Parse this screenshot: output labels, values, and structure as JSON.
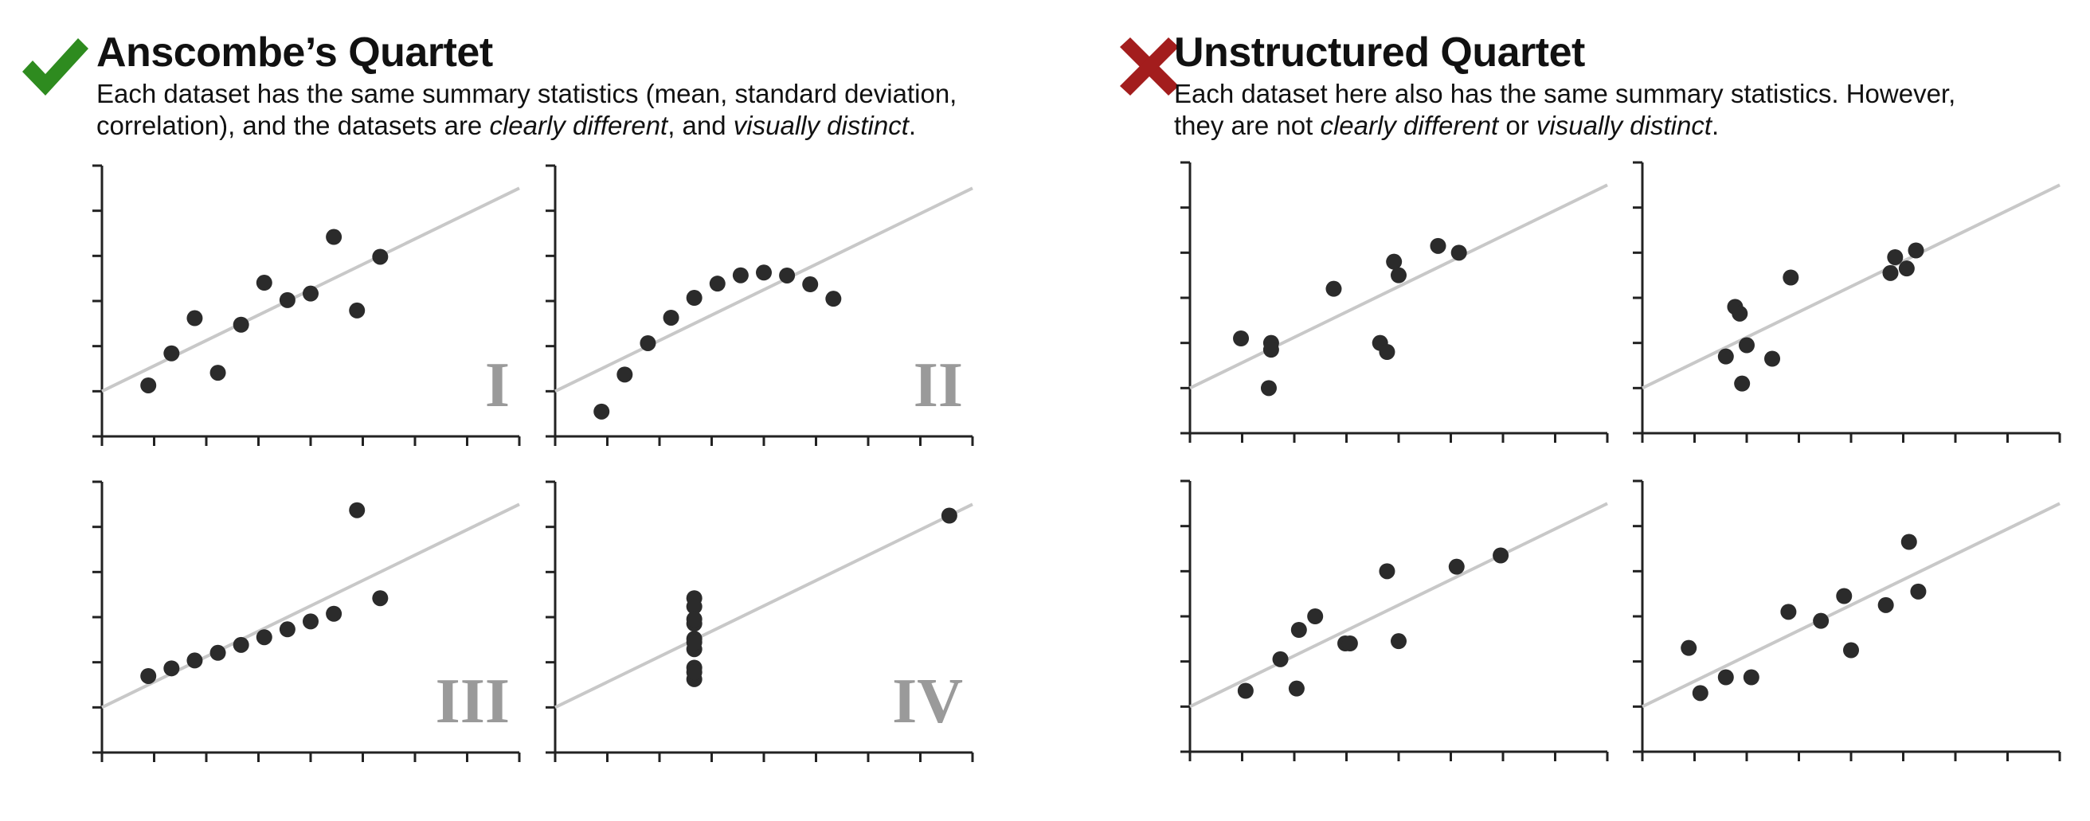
{
  "left": {
    "icon": "checkmark-icon",
    "icon_color": "#2e8b1f",
    "title": "Anscombe’s Quartet",
    "description_segments": [
      [
        {
          "text": "Each dataset has the same summary statistics (mean, standard deviation,",
          "italic": false
        }
      ],
      [
        {
          "text": "correlation), and the datasets are ",
          "italic": false
        },
        {
          "text": "clearly different",
          "italic": true
        },
        {
          "text": ", and ",
          "italic": false
        },
        {
          "text": "visually distinct",
          "italic": true
        },
        {
          "text": ".",
          "italic": false
        }
      ]
    ]
  },
  "right": {
    "icon": "cross-icon",
    "icon_color": "#a31d1d",
    "title": "Unstructured Quartet",
    "description_segments": [
      [
        {
          "text": "Each dataset here also has the same summary statistics. However,",
          "italic": false
        }
      ],
      [
        {
          "text": "they are not ",
          "italic": false
        },
        {
          "text": "clearly different",
          "italic": true
        },
        {
          "text": " or ",
          "italic": false
        },
        {
          "text": "visually distinct",
          "italic": true
        },
        {
          "text": ".",
          "italic": false
        }
      ]
    ]
  },
  "colors": {
    "point": "#2b2b2b",
    "fit_line": "#c8c8c8",
    "axis": "#222222",
    "roman_label": "#9a9a9a"
  },
  "chart_data": [
    {
      "type": "scatter",
      "group": "left",
      "label": "I",
      "xlim": [
        2,
        20
      ],
      "ylim": [
        2,
        14
      ],
      "ticks": 9,
      "grid": false,
      "fit_line": {
        "intercept": 3,
        "slope": 0.5
      },
      "x": [
        10,
        8,
        13,
        9,
        11,
        14,
        6,
        4,
        12,
        7,
        5
      ],
      "y": [
        8.04,
        6.95,
        7.58,
        8.81,
        8.33,
        9.96,
        7.24,
        4.26,
        10.84,
        4.82,
        5.68
      ]
    },
    {
      "type": "scatter",
      "group": "left",
      "label": "II",
      "xlim": [
        2,
        20
      ],
      "ylim": [
        2,
        14
      ],
      "ticks": 9,
      "grid": false,
      "fit_line": {
        "intercept": 3,
        "slope": 0.5
      },
      "x": [
        10,
        8,
        13,
        9,
        11,
        14,
        6,
        4,
        12,
        7,
        5
      ],
      "y": [
        9.14,
        8.14,
        8.74,
        8.77,
        9.26,
        8.1,
        6.13,
        3.1,
        9.13,
        7.26,
        4.74
      ]
    },
    {
      "type": "scatter",
      "group": "left",
      "label": "III",
      "xlim": [
        2,
        20
      ],
      "ylim": [
        2,
        14
      ],
      "ticks": 9,
      "grid": false,
      "fit_line": {
        "intercept": 3,
        "slope": 0.5
      },
      "x": [
        10,
        8,
        13,
        9,
        11,
        14,
        6,
        4,
        12,
        7,
        5
      ],
      "y": [
        7.46,
        6.77,
        12.74,
        7.11,
        7.81,
        8.84,
        6.08,
        5.39,
        8.15,
        6.42,
        5.73
      ]
    },
    {
      "type": "scatter",
      "group": "left",
      "label": "IV",
      "xlim": [
        2,
        20
      ],
      "ylim": [
        2,
        14
      ],
      "ticks": 9,
      "grid": false,
      "fit_line": {
        "intercept": 3,
        "slope": 0.5
      },
      "x": [
        8,
        8,
        8,
        8,
        8,
        8,
        8,
        19,
        8,
        8,
        8
      ],
      "y": [
        6.58,
        5.76,
        7.71,
        8.84,
        8.47,
        7.04,
        5.25,
        12.5,
        5.56,
        7.91,
        6.89
      ]
    },
    {
      "type": "scatter",
      "group": "right",
      "label": "",
      "xlim": [
        2,
        20
      ],
      "ylim": [
        2,
        14
      ],
      "ticks": 9,
      "grid": false,
      "fit_line": {
        "intercept": 3,
        "slope": 0.5
      },
      "x": [
        4.2,
        5.5,
        5.5,
        5.4,
        8.2,
        10.2,
        10.5,
        10.8,
        11,
        12.7,
        13.6
      ],
      "y": [
        6.2,
        6.0,
        5.7,
        4.0,
        8.4,
        6.0,
        5.6,
        9.6,
        9.0,
        10.3,
        10.0
      ]
    },
    {
      "type": "scatter",
      "group": "right",
      "label": "",
      "xlim": [
        2,
        20
      ],
      "ylim": [
        2,
        14
      ],
      "ticks": 9,
      "grid": false,
      "fit_line": {
        "intercept": 3,
        "slope": 0.5
      },
      "x": [
        5.6,
        6.0,
        6.2,
        6.3,
        6.5,
        7.6,
        8.4,
        12.7,
        12.9,
        13.4,
        13.8
      ],
      "y": [
        5.4,
        7.6,
        7.3,
        4.2,
        5.9,
        5.3,
        8.9,
        9.1,
        9.8,
        9.3,
        10.1
      ]
    },
    {
      "type": "scatter",
      "group": "right",
      "label": "",
      "xlim": [
        2,
        20
      ],
      "ylim": [
        2,
        14
      ],
      "ticks": 9,
      "grid": false,
      "fit_line": {
        "intercept": 3,
        "slope": 0.5
      },
      "x": [
        4.4,
        5.9,
        6.6,
        6.7,
        7.4,
        8.7,
        8.9,
        10.5,
        11,
        13.5,
        15.4
      ],
      "y": [
        4.7,
        6.1,
        4.8,
        7.4,
        8.0,
        6.8,
        6.8,
        10.0,
        6.9,
        10.2,
        10.7
      ]
    },
    {
      "type": "scatter",
      "group": "right",
      "label": "",
      "xlim": [
        2,
        20
      ],
      "ylim": [
        2,
        14
      ],
      "ticks": 9,
      "grid": false,
      "fit_line": {
        "intercept": 3,
        "slope": 0.5
      },
      "x": [
        4.0,
        4.5,
        5.6,
        6.7,
        8.3,
        9.7,
        10.7,
        11.0,
        12.5,
        13.5,
        13.9
      ],
      "y": [
        6.6,
        4.6,
        5.3,
        5.3,
        8.2,
        7.8,
        8.9,
        6.5,
        8.5,
        11.3,
        9.1
      ]
    }
  ]
}
